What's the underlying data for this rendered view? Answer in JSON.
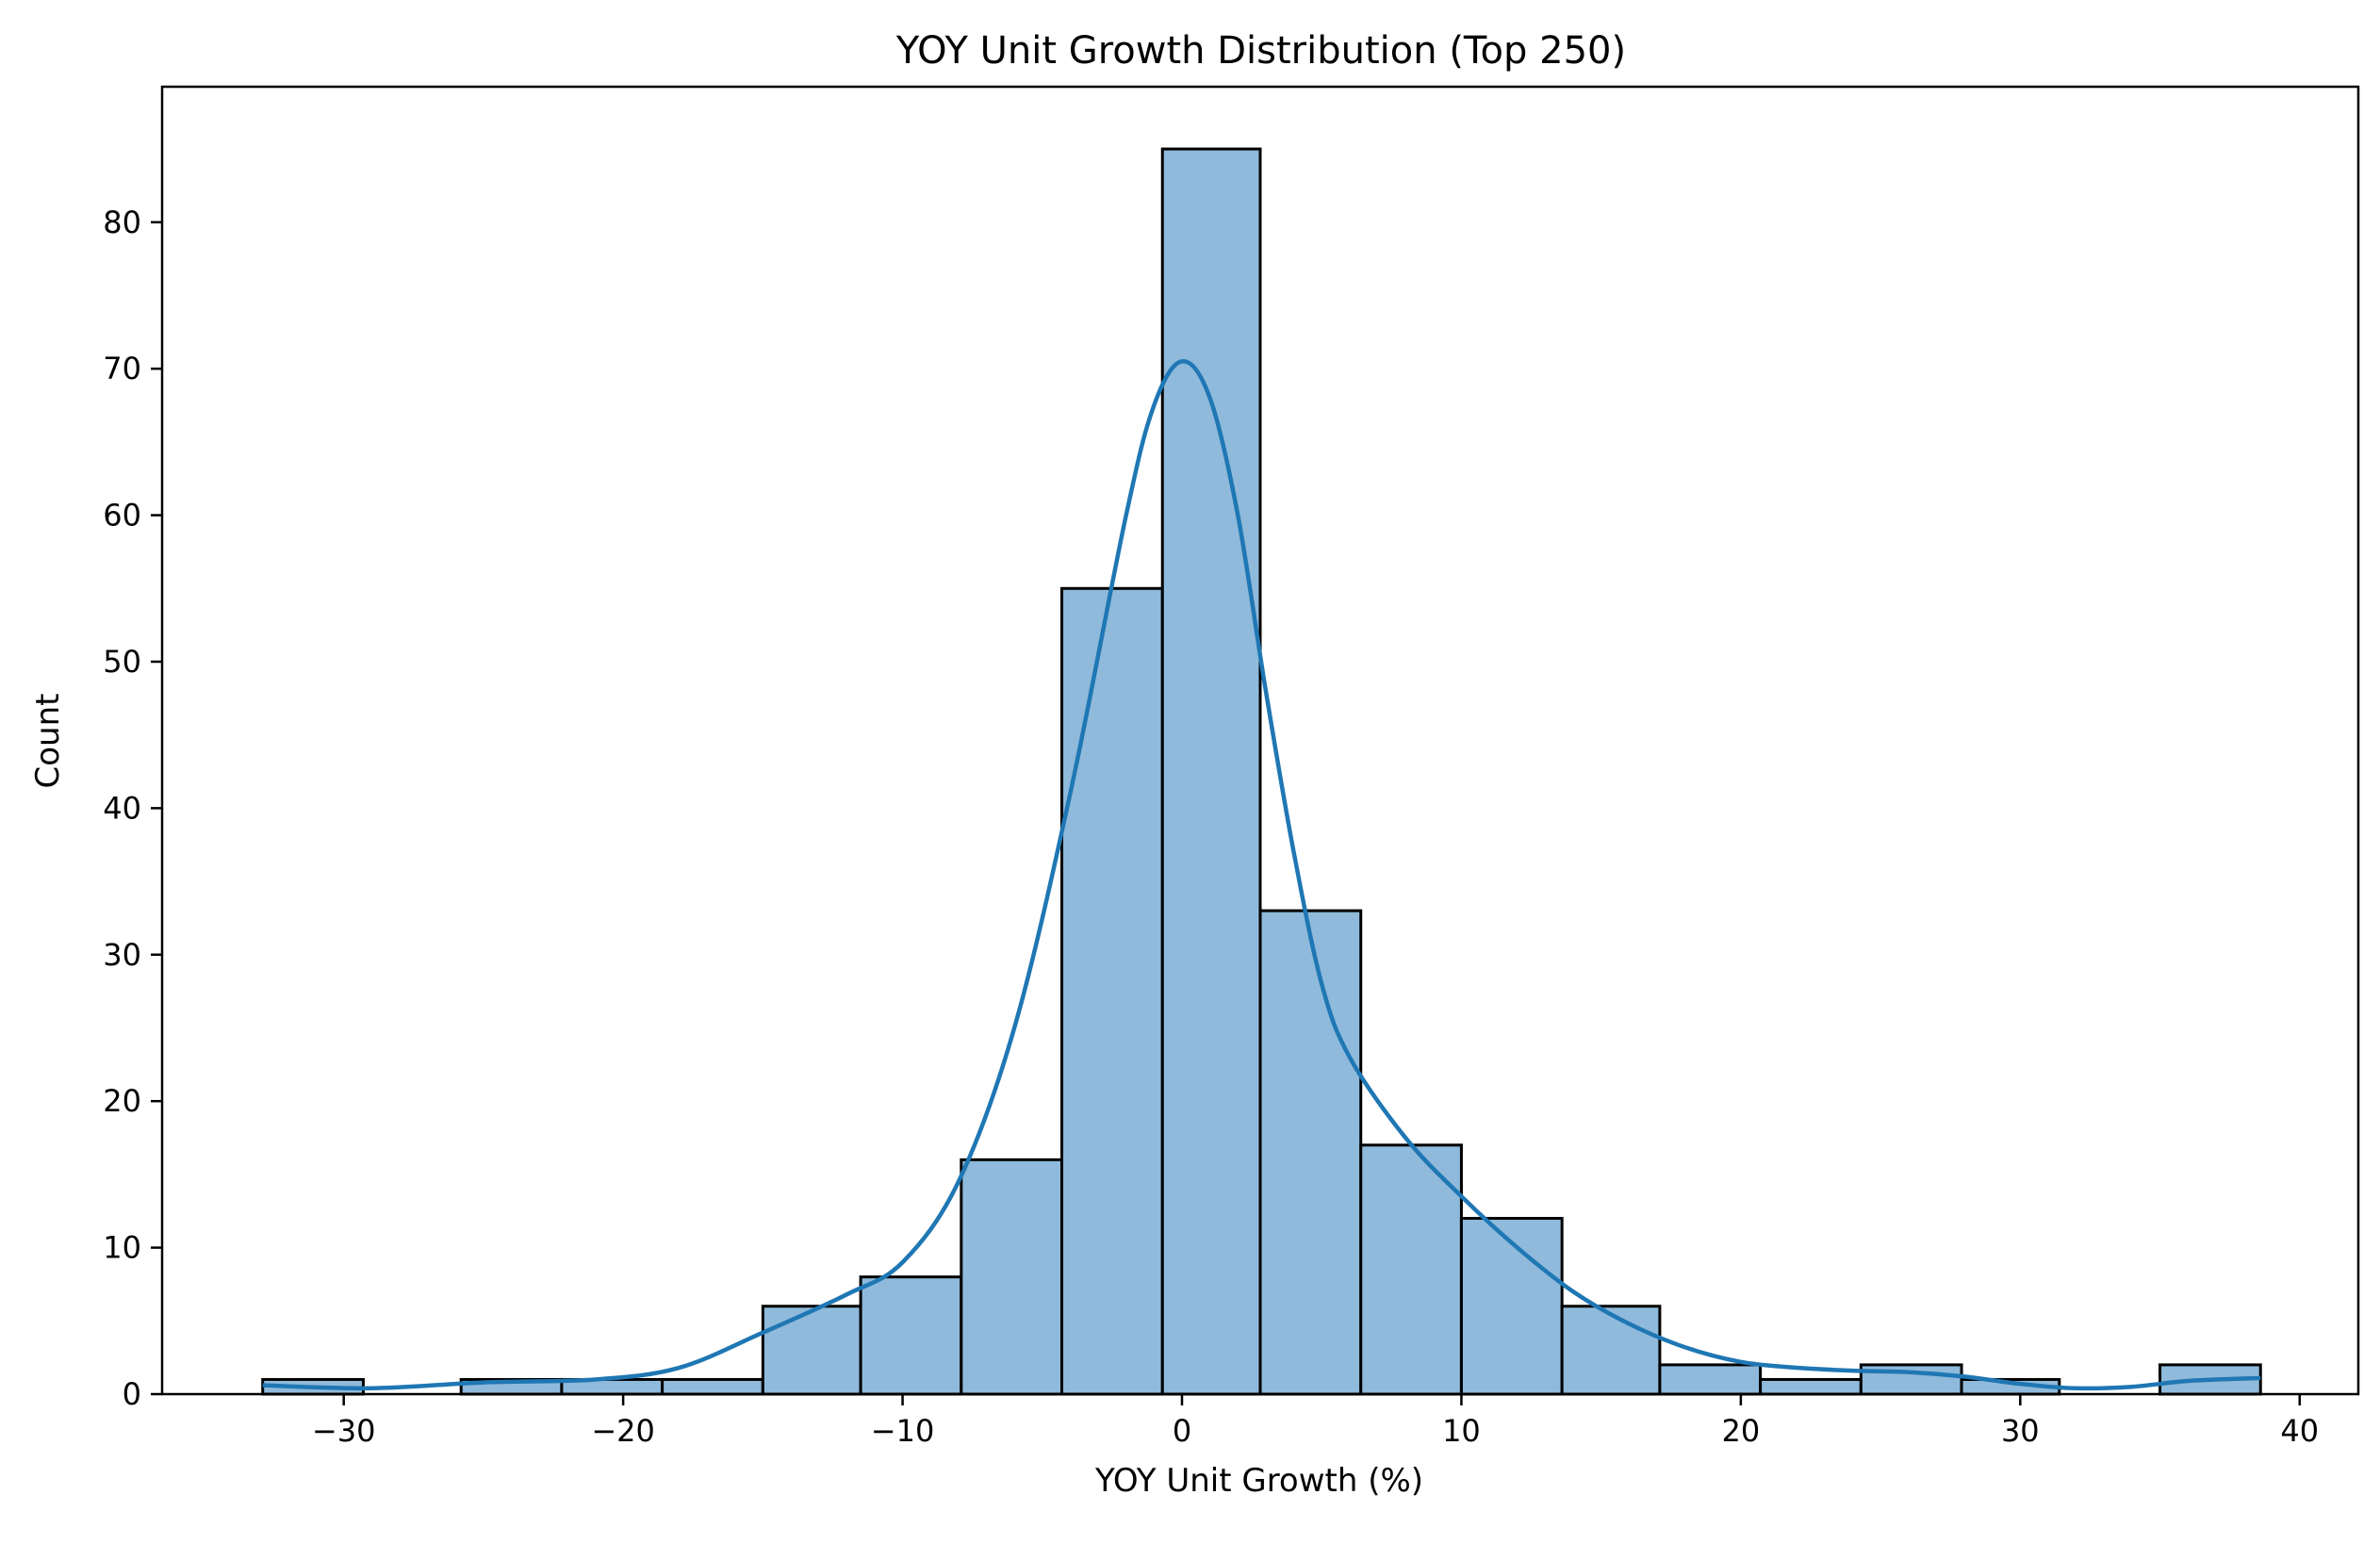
{
  "chart_data": {
    "type": "bar",
    "title": "YOY Unit Growth Distribution (Top 250)",
    "xlabel": "YOY Unit Growth (%)",
    "ylabel": "Count",
    "xlim": [
      -36.5,
      42.1
    ],
    "ylim": [
      0,
      89.25
    ],
    "xticks": [
      -30,
      -20,
      -10,
      0,
      10,
      20,
      30,
      40
    ],
    "xtick_labels": [
      "−30",
      "−20",
      "−10",
      "0",
      "10",
      "20",
      "30",
      "40"
    ],
    "yticks": [
      0,
      10,
      20,
      30,
      40,
      50,
      60,
      70,
      80
    ],
    "ytick_labels": [
      "0",
      "10",
      "20",
      "30",
      "40",
      "50",
      "60",
      "70",
      "80"
    ],
    "grid": false,
    "bar_color": "#8fbadb",
    "bar_edge_color": "#000000",
    "line_color": "#1f77b4",
    "bins": [
      {
        "x0": -32.9,
        "x1": -29.3,
        "count": 1
      },
      {
        "x0": -29.3,
        "x1": -25.8,
        "count": 0
      },
      {
        "x0": -25.8,
        "x1": -22.2,
        "count": 1
      },
      {
        "x0": -22.2,
        "x1": -18.6,
        "count": 1
      },
      {
        "x0": -18.6,
        "x1": -15.0,
        "count": 1
      },
      {
        "x0": -15.0,
        "x1": -11.5,
        "count": 6
      },
      {
        "x0": -11.5,
        "x1": -7.9,
        "count": 8
      },
      {
        "x0": -7.9,
        "x1": -4.3,
        "count": 16
      },
      {
        "x0": -4.3,
        "x1": -0.7,
        "count": 55
      },
      {
        "x0": -0.7,
        "x1": 2.8,
        "count": 85
      },
      {
        "x0": 2.8,
        "x1": 6.4,
        "count": 33
      },
      {
        "x0": 6.4,
        "x1": 10.0,
        "count": 17
      },
      {
        "x0": 10.0,
        "x1": 13.6,
        "count": 12
      },
      {
        "x0": 13.6,
        "x1": 17.1,
        "count": 6
      },
      {
        "x0": 17.1,
        "x1": 20.7,
        "count": 2
      },
      {
        "x0": 20.7,
        "x1": 24.3,
        "count": 1
      },
      {
        "x0": 24.3,
        "x1": 27.9,
        "count": 2
      },
      {
        "x0": 27.9,
        "x1": 31.4,
        "count": 1
      },
      {
        "x0": 31.4,
        "x1": 35.0,
        "count": 0
      },
      {
        "x0": 35.0,
        "x1": 38.6,
        "count": 2
      }
    ],
    "kde": {
      "x": [
        -32.9,
        -29,
        -25,
        -21,
        -18,
        -15,
        -12,
        -10,
        -8,
        -6,
        -4,
        -2,
        -1,
        0,
        1,
        2,
        3,
        4,
        5,
        6,
        8,
        10,
        12,
        14,
        16,
        18,
        20,
        22,
        24,
        26,
        28,
        30,
        32,
        34,
        36,
        38.6
      ],
      "y": [
        0.6,
        0.4,
        0.8,
        1.0,
        1.8,
        4.2,
        6.8,
        9.0,
        14.5,
        25.0,
        41.0,
        60.0,
        67.5,
        70.5,
        68.0,
        60.0,
        48.0,
        37.0,
        28.0,
        23.0,
        17.5,
        13.5,
        10.0,
        7.0,
        4.8,
        3.2,
        2.2,
        1.8,
        1.6,
        1.5,
        1.2,
        0.7,
        0.4,
        0.5,
        0.9,
        1.1
      ]
    }
  }
}
